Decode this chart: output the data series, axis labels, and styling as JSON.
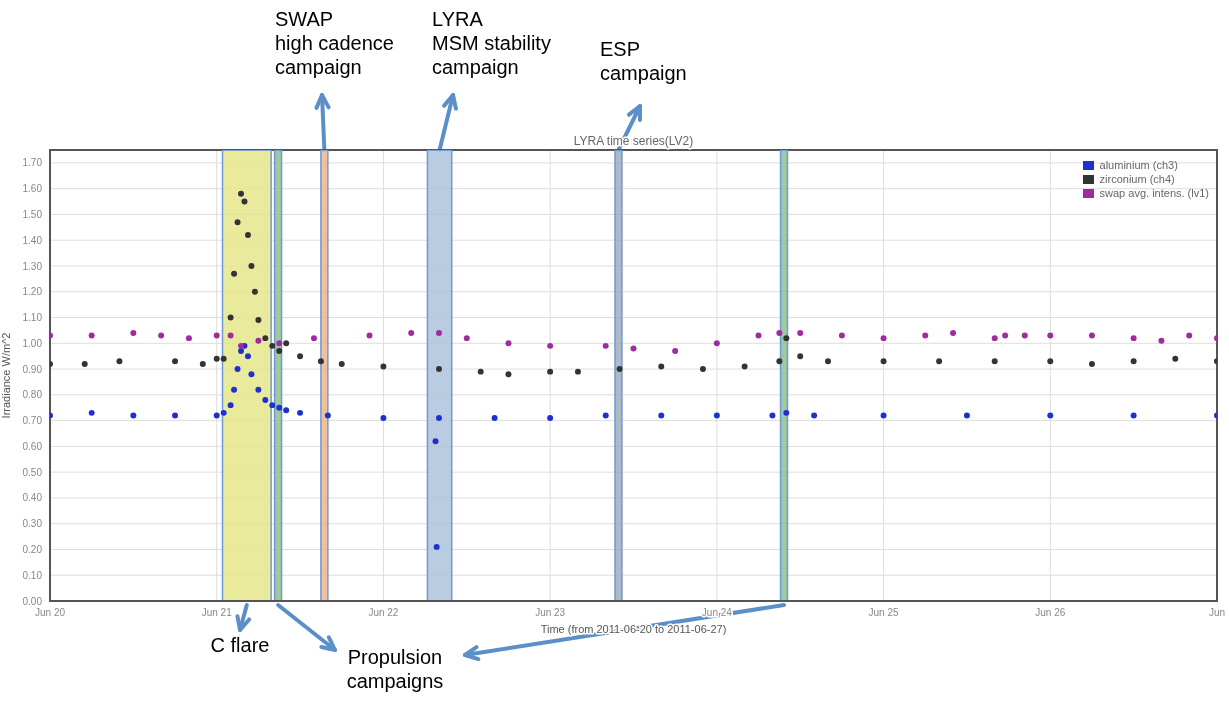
{
  "chart_data": {
    "type": "scatter",
    "title": "LYRA time series(LV2)",
    "xlabel": "Time (from 2011-06-20 to 2011-06-27)",
    "ylabel": "Irradiance W/m^2",
    "xlim": [
      "2011-06-20T00:00",
      "2011-06-27T00:00"
    ],
    "xticks": [
      {
        "value": "2011-06-20T00:00",
        "label": "Jun 20"
      },
      {
        "value": "2011-06-21T00:00",
        "label": "Jun 21"
      },
      {
        "value": "2011-06-22T00:00",
        "label": "Jun 22"
      },
      {
        "value": "2011-06-23T00:00",
        "label": "Jun 23"
      },
      {
        "value": "2011-06-24T00:00",
        "label": "Jun 24"
      },
      {
        "value": "2011-06-25T00:00",
        "label": "Jun 25"
      },
      {
        "value": "2011-06-26T00:00",
        "label": "Jun 26"
      },
      {
        "value": "2011-06-27T00:00",
        "label": "Jun"
      }
    ],
    "ylim": [
      0,
      1.75
    ],
    "yticks": [
      {
        "value": 0,
        "label": "0.00"
      },
      {
        "value": 0.1,
        "label": "0.10"
      },
      {
        "value": 0.2,
        "label": "0.20"
      },
      {
        "value": 0.3,
        "label": "0.30"
      },
      {
        "value": 0.4,
        "label": "0.40"
      },
      {
        "value": 0.5,
        "label": "0.50"
      },
      {
        "value": 0.6,
        "label": "0.60"
      },
      {
        "value": 0.7,
        "label": "0.70"
      },
      {
        "value": 0.8,
        "label": "0.80"
      },
      {
        "value": 0.9,
        "label": "0.90"
      },
      {
        "value": 1.0,
        "label": "1.00"
      },
      {
        "value": 1.1,
        "label": "1.10"
      },
      {
        "value": 1.2,
        "label": "1.20"
      },
      {
        "value": 1.3,
        "label": "1.30"
      },
      {
        "value": 1.4,
        "label": "1.40"
      },
      {
        "value": 1.5,
        "label": "1.50"
      },
      {
        "value": 1.6,
        "label": "1.60"
      },
      {
        "value": 1.7,
        "label": "1.70"
      }
    ],
    "grid": true,
    "legend": "top right",
    "marker": "circle",
    "series": [
      {
        "name": "aluminium (ch3)",
        "color": "#1f2fd0",
        "x": [
          "2011-06-20T00:00",
          "2011-06-20T06:00",
          "2011-06-20T12:00",
          "2011-06-20T18:00",
          "2011-06-21T00:00",
          "2011-06-21T01:00",
          "2011-06-21T02:00",
          "2011-06-21T02:30",
          "2011-06-21T03:00",
          "2011-06-21T03:30",
          "2011-06-21T04:00",
          "2011-06-21T04:30",
          "2011-06-21T05:00",
          "2011-06-21T06:00",
          "2011-06-21T07:00",
          "2011-06-21T08:00",
          "2011-06-21T09:00",
          "2011-06-21T10:00",
          "2011-06-21T12:00",
          "2011-06-21T16:00",
          "2011-06-22T00:00",
          "2011-06-22T07:30",
          "2011-06-22T07:40",
          "2011-06-22T08:00",
          "2011-06-22T16:00",
          "2011-06-23T00:00",
          "2011-06-23T08:00",
          "2011-06-23T16:00",
          "2011-06-24T00:00",
          "2011-06-24T08:00",
          "2011-06-24T10:00",
          "2011-06-24T14:00",
          "2011-06-25T00:00",
          "2011-06-25T12:00",
          "2011-06-26T00:00",
          "2011-06-26T12:00",
          "2011-06-27T00:00"
        ],
        "values": [
          0.72,
          0.73,
          0.72,
          0.72,
          0.72,
          0.73,
          0.76,
          0.82,
          0.9,
          0.97,
          0.99,
          0.95,
          0.88,
          0.82,
          0.78,
          0.76,
          0.75,
          0.74,
          0.73,
          0.72,
          0.71,
          0.62,
          0.21,
          0.71,
          0.71,
          0.71,
          0.72,
          0.72,
          0.72,
          0.72,
          0.73,
          0.72,
          0.72,
          0.72,
          0.72,
          0.72,
          0.72
        ]
      },
      {
        "name": "zirconium (ch4)",
        "color": "#333333",
        "x": [
          "2011-06-20T00:00",
          "2011-06-20T05:00",
          "2011-06-20T10:00",
          "2011-06-20T18:00",
          "2011-06-20T22:00",
          "2011-06-21T00:00",
          "2011-06-21T01:00",
          "2011-06-21T02:00",
          "2011-06-21T02:30",
          "2011-06-21T03:00",
          "2011-06-21T03:30",
          "2011-06-21T04:00",
          "2011-06-21T04:30",
          "2011-06-21T05:00",
          "2011-06-21T05:30",
          "2011-06-21T06:00",
          "2011-06-21T07:00",
          "2011-06-21T08:00",
          "2011-06-21T09:00",
          "2011-06-21T10:00",
          "2011-06-21T12:00",
          "2011-06-21T15:00",
          "2011-06-21T18:00",
          "2011-06-22T00:00",
          "2011-06-22T08:00",
          "2011-06-22T14:00",
          "2011-06-22T18:00",
          "2011-06-23T00:00",
          "2011-06-23T04:00",
          "2011-06-23T10:00",
          "2011-06-23T16:00",
          "2011-06-23T22:00",
          "2011-06-24T04:00",
          "2011-06-24T09:00",
          "2011-06-24T10:00",
          "2011-06-24T12:00",
          "2011-06-24T16:00",
          "2011-06-25T00:00",
          "2011-06-25T08:00",
          "2011-06-25T16:00",
          "2011-06-26T00:00",
          "2011-06-26T06:00",
          "2011-06-26T12:00",
          "2011-06-26T18:00",
          "2011-06-27T00:00"
        ],
        "values": [
          0.92,
          0.92,
          0.93,
          0.93,
          0.92,
          0.94,
          0.94,
          1.1,
          1.27,
          1.47,
          1.58,
          1.55,
          1.42,
          1.3,
          1.2,
          1.09,
          1.02,
          0.99,
          0.97,
          1.0,
          0.95,
          0.93,
          0.92,
          0.91,
          0.9,
          0.89,
          0.88,
          0.89,
          0.89,
          0.9,
          0.91,
          0.9,
          0.91,
          0.93,
          1.02,
          0.95,
          0.93,
          0.93,
          0.93,
          0.93,
          0.93,
          0.92,
          0.93,
          0.94,
          0.93
        ]
      },
      {
        "name": "swap avg. intens. (lv1)",
        "color": "#a02aa0",
        "x": [
          "2011-06-20T00:00",
          "2011-06-20T06:00",
          "2011-06-20T12:00",
          "2011-06-20T16:00",
          "2011-06-20T20:00",
          "2011-06-21T00:00",
          "2011-06-21T02:00",
          "2011-06-21T03:30",
          "2011-06-21T06:00",
          "2011-06-21T09:00",
          "2011-06-21T14:00",
          "2011-06-21T22:00",
          "2011-06-22T04:00",
          "2011-06-22T08:00",
          "2011-06-22T12:00",
          "2011-06-22T18:00",
          "2011-06-23T00:00",
          "2011-06-23T08:00",
          "2011-06-23T12:00",
          "2011-06-23T18:00",
          "2011-06-24T00:00",
          "2011-06-24T06:00",
          "2011-06-24T09:00",
          "2011-06-24T12:00",
          "2011-06-24T18:00",
          "2011-06-25T00:00",
          "2011-06-25T06:00",
          "2011-06-25T10:00",
          "2011-06-25T16:00",
          "2011-06-25T17:30",
          "2011-06-25T20:20",
          "2011-06-26T00:00",
          "2011-06-26T06:00",
          "2011-06-26T12:00",
          "2011-06-26T16:00",
          "2011-06-26T20:00",
          "2011-06-27T00:00"
        ],
        "values": [
          1.03,
          1.03,
          1.04,
          1.03,
          1.02,
          1.03,
          1.03,
          0.99,
          1.01,
          1.0,
          1.02,
          1.03,
          1.04,
          1.04,
          1.02,
          1.0,
          0.99,
          0.99,
          0.98,
          0.97,
          1.0,
          1.03,
          1.04,
          1.04,
          1.03,
          1.02,
          1.03,
          1.04,
          1.02,
          1.03,
          1.03,
          1.03,
          1.03,
          1.02,
          1.01,
          1.03,
          1.02
        ]
      }
    ],
    "bands": [
      {
        "axis": "x",
        "from": "2011-06-21T00:50",
        "to": "2011-06-21T07:50",
        "label": "C flare",
        "color": "#e6e68c"
      },
      {
        "axis": "x",
        "from": "2011-06-21T08:20",
        "to": "2011-06-21T09:20",
        "label": "Propulsion\ncampaigns",
        "color": "#8fbf8f"
      },
      {
        "axis": "x",
        "from": "2011-06-21T15:00",
        "to": "2011-06-21T16:00",
        "label": "SWAP\nhigh cadence\ncampaign",
        "color": "#f0b48c"
      },
      {
        "axis": "x",
        "from": "2011-06-22T06:20",
        "to": "2011-06-22T09:50",
        "label": "LYRA\nMSM stability\ncampaign",
        "color": "#adc3dd"
      },
      {
        "axis": "x",
        "from": "2011-06-23T09:20",
        "to": "2011-06-23T10:20",
        "label": "ESP\ncampaign",
        "color": "#a3adbd"
      },
      {
        "axis": "x",
        "from": "2011-06-24T09:10",
        "to": "2011-06-24T10:10",
        "label": null,
        "color": "#8fbf8f"
      }
    ]
  }
}
